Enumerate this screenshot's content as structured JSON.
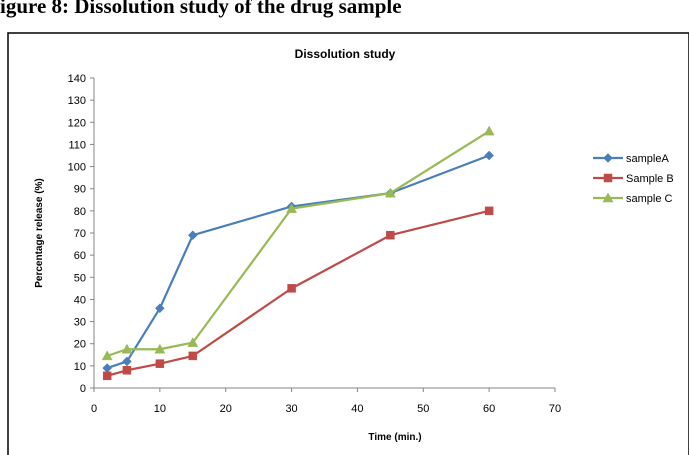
{
  "top_caption": "igure 8: Dissolution study of the drug sample",
  "chart_data": {
    "type": "line",
    "title": "Dissolution study",
    "xlabel": "Time (min.)",
    "ylabel": "Percentage release (%)",
    "xlim": [
      0,
      70
    ],
    "ylim": [
      0,
      140
    ],
    "x_ticks": [
      "0",
      "10",
      "20",
      "30",
      "40",
      "50",
      "60",
      "70"
    ],
    "y_ticks": [
      "0",
      "10",
      "20",
      "30",
      "40",
      "50",
      "60",
      "70",
      "80",
      "90",
      "100",
      "110",
      "120",
      "130",
      "140"
    ],
    "grid": false,
    "legend_position": "right",
    "series": [
      {
        "name": "sampleA",
        "color": "#4a7ebb",
        "marker": "diamond",
        "x": [
          2,
          5,
          10,
          15,
          30,
          45,
          60
        ],
        "y": [
          9,
          12,
          36,
          69,
          82,
          88,
          105
        ]
      },
      {
        "name": "Sample B",
        "color": "#be4b48",
        "marker": "square",
        "x": [
          2,
          5,
          10,
          15,
          30,
          45,
          60
        ],
        "y": [
          5.5,
          8,
          11,
          14.5,
          45,
          69,
          80
        ]
      },
      {
        "name": "sample C",
        "color": "#98b954",
        "marker": "triangle",
        "x": [
          2,
          5,
          10,
          15,
          30,
          45,
          60
        ],
        "y": [
          14.5,
          17.5,
          17.5,
          20.5,
          81,
          88,
          116
        ]
      }
    ]
  }
}
